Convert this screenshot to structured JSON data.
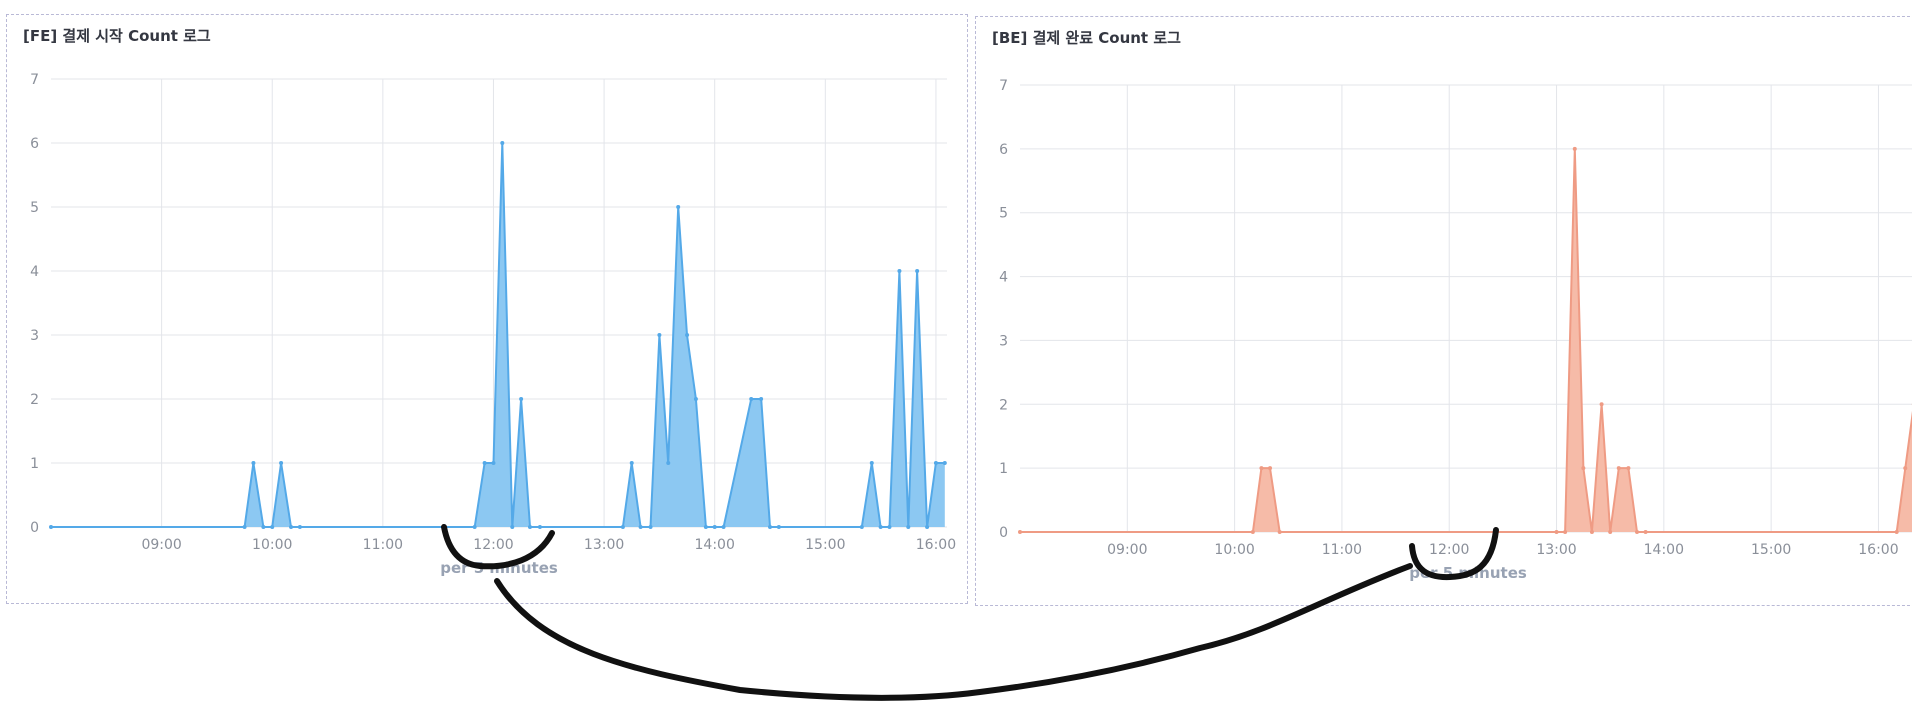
{
  "panels": [
    {
      "title": "[FE] 결제 시작 Count 로그"
    },
    {
      "title": "[BE] 결제 완료 Count 로그"
    }
  ],
  "chart_data": [
    {
      "type": "area",
      "title": "[FE] 결제 시작 Count 로그",
      "xlabel": "per 5 minutes",
      "ylabel": "",
      "color": "#54a9e8",
      "fill": "#8cc8f2",
      "ylim": [
        0,
        7
      ],
      "yticks": [
        "0",
        "1",
        "2",
        "3",
        "4",
        "5",
        "6",
        "7"
      ],
      "xticks": [
        "09:00",
        "10:00",
        "11:00",
        "12:00",
        "13:00",
        "14:00",
        "15:00",
        "16:00"
      ],
      "xticks_hours": [
        9,
        10,
        11,
        12,
        13,
        14,
        15,
        16
      ],
      "xlim_hours": [
        8.0,
        16.1
      ],
      "x_hours": [
        8.0,
        9.75,
        9.83,
        9.92,
        10.0,
        10.08,
        10.17,
        10.25,
        11.83,
        11.92,
        12.0,
        12.08,
        12.17,
        12.25,
        12.33,
        12.42,
        13.17,
        13.25,
        13.33,
        13.42,
        13.5,
        13.58,
        13.67,
        13.75,
        13.83,
        13.92,
        14.0,
        14.08,
        14.33,
        14.42,
        14.5,
        14.58,
        15.33,
        15.42,
        15.5,
        15.58,
        15.67,
        15.75,
        15.83,
        15.92,
        16.0,
        16.08
      ],
      "y": [
        0,
        0,
        1,
        0,
        0,
        1,
        0,
        0,
        0,
        1,
        1,
        6,
        0,
        2,
        0,
        0,
        0,
        1,
        0,
        0,
        3,
        1,
        5,
        3,
        2,
        0,
        0,
        0,
        2,
        2,
        0,
        0,
        0,
        1,
        0,
        0,
        4,
        0,
        4,
        0,
        1,
        1
      ]
    },
    {
      "type": "area",
      "title": "[BE] 결제 완료 Count 로그",
      "xlabel": "per 5 minutes",
      "ylabel": "",
      "color": "#ef9b84",
      "fill": "#f6bba8",
      "ylim": [
        0,
        7
      ],
      "yticks": [
        "0",
        "1",
        "2",
        "3",
        "4",
        "5",
        "6",
        "7"
      ],
      "xticks": [
        "09:00",
        "10:00",
        "11:00",
        "12:00",
        "13:00",
        "14:00",
        "15:00",
        "16:00"
      ],
      "xticks_hours": [
        9,
        10,
        11,
        12,
        13,
        14,
        15,
        16
      ],
      "xlim_hours": [
        8.0,
        16.35
      ],
      "x_hours": [
        8.0,
        10.17,
        10.25,
        10.33,
        10.42,
        13.0,
        13.08,
        13.17,
        13.25,
        13.33,
        13.42,
        13.5,
        13.58,
        13.67,
        13.75,
        13.83,
        16.17,
        16.25,
        16.33
      ],
      "y": [
        0,
        0,
        1,
        1,
        0,
        0,
        0,
        6,
        1,
        0,
        2,
        0,
        1,
        1,
        0,
        0,
        0,
        1,
        2
      ]
    }
  ]
}
